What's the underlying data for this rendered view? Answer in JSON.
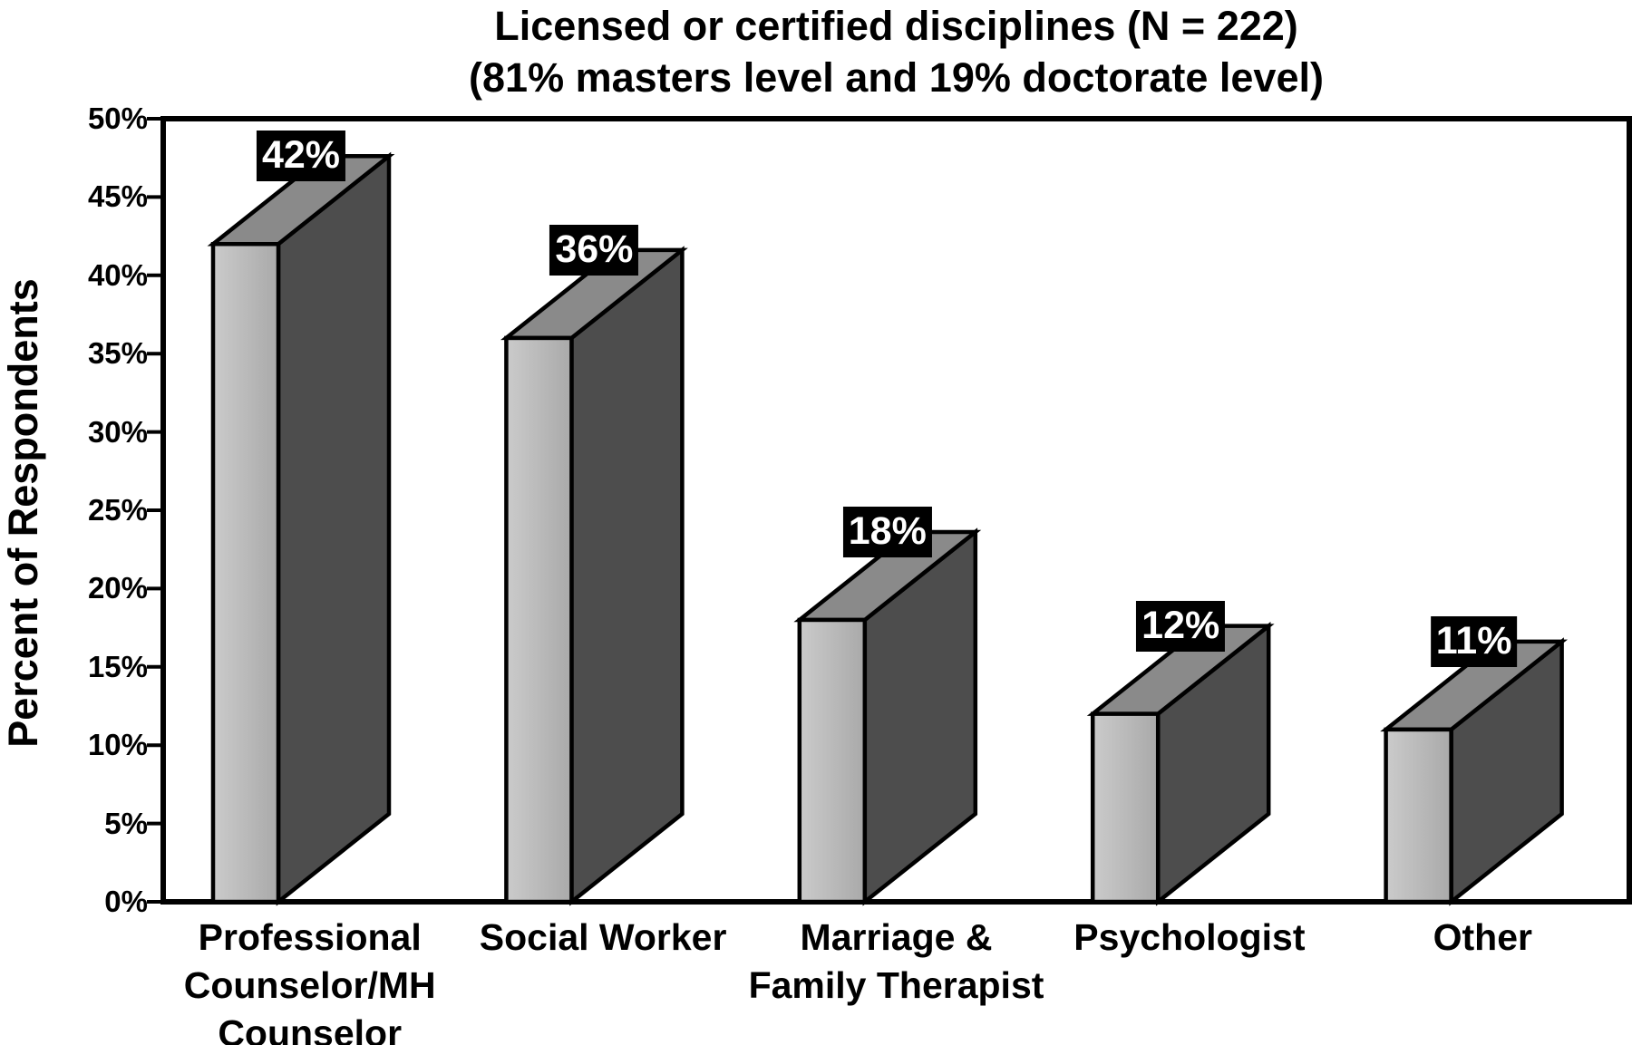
{
  "chart_data": {
    "type": "bar",
    "style": "3d-oblique",
    "title": "Licensed or certified disciplines (N = 222)",
    "subtitle": "(81% masters level and 19% doctorate level)",
    "ylabel": "Percent of Respondents",
    "xlabel": "",
    "categories": [
      "Professional\nCounselor/MH\nCounselor",
      "Social Worker",
      "Marriage &\nFamily Therapist",
      "Psychologist",
      "Other"
    ],
    "values": [
      42,
      36,
      18,
      12,
      11
    ],
    "value_labels": [
      "42%",
      "36%",
      "18%",
      "12%",
      "11%"
    ],
    "ylim": [
      0,
      50
    ],
    "ytick_step": 5,
    "ytick_labels": [
      "0%",
      "5%",
      "10%",
      "15%",
      "20%",
      "25%",
      "30%",
      "35%",
      "40%",
      "45%",
      "50%"
    ],
    "grid": false,
    "legend": false
  },
  "colors": {
    "background": "#ffffff",
    "text": "#000000",
    "frame": "#000000",
    "edge": "#000000",
    "bar_front_light": "#cbcbcb",
    "bar_front_dark": "#a9a9a9",
    "bar_top": "#8a8a8a",
    "bar_side": "#4d4d4d",
    "value_label_bg": "#000000",
    "value_label_fg": "#ffffff"
  }
}
